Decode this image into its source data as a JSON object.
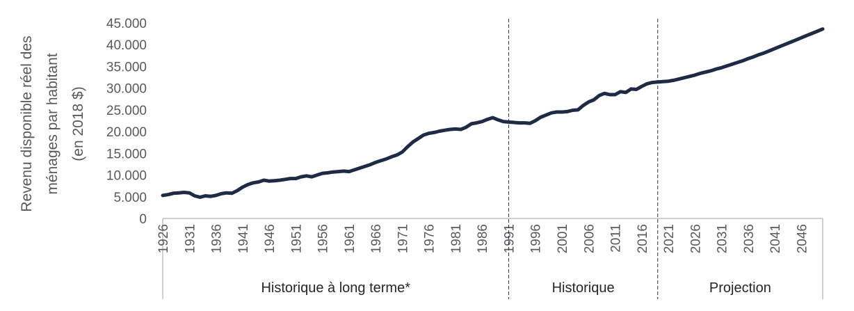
{
  "chart_data": {
    "type": "line",
    "ylabel": [
      "Revenu disponible réel des",
      "ménages par habitant",
      "(en 2018 $)"
    ],
    "ylim": [
      0,
      45000
    ],
    "y_ticks": [
      "0",
      "5.000",
      "10.000",
      "15.000",
      "20.000",
      "25.000",
      "30.000",
      "35.000",
      "40.000",
      "45.000"
    ],
    "y_tick_values": [
      0,
      5000,
      10000,
      15000,
      20000,
      25000,
      30000,
      35000,
      40000,
      45000
    ],
    "xlim": [
      1926,
      2050
    ],
    "x_ticks": [
      "1926",
      "1931",
      "1936",
      "1941",
      "1946",
      "1951",
      "1956",
      "1961",
      "1966",
      "1971",
      "1976",
      "1981",
      "1986",
      "1991",
      "1996",
      "2001",
      "2006",
      "2011",
      "2016",
      "2021",
      "2026",
      "2031",
      "2036",
      "2041",
      "2046"
    ],
    "x_tick_values": [
      1926,
      1931,
      1936,
      1941,
      1946,
      1951,
      1956,
      1961,
      1966,
      1971,
      1976,
      1981,
      1986,
      1991,
      1996,
      2001,
      2006,
      2011,
      2016,
      2021,
      2026,
      2031,
      2036,
      2041,
      2046
    ],
    "segments": [
      {
        "label": "Historique à long terme*",
        "start": 1926,
        "end": 1991
      },
      {
        "label": "Historique",
        "start": 1991,
        "end": 2019
      },
      {
        "label": "Projection",
        "start": 2019,
        "end": 2050
      }
    ],
    "dividers": [
      1991,
      2019
    ],
    "grid": false,
    "line_color": "#1f2b44",
    "series": [
      {
        "x": [
          1926,
          1927,
          1928,
          1929,
          1930,
          1931,
          1932,
          1933,
          1934,
          1935,
          1936,
          1937,
          1938,
          1939,
          1940,
          1941,
          1942,
          1943,
          1944,
          1945,
          1946,
          1947,
          1948,
          1949,
          1950,
          1951,
          1952,
          1953,
          1954,
          1955,
          1956,
          1957,
          1958,
          1959,
          1960,
          1961,
          1962,
          1963,
          1964,
          1965,
          1966,
          1967,
          1968,
          1969,
          1970,
          1971,
          1972,
          1973,
          1974,
          1975,
          1976,
          1977,
          1978,
          1979,
          1980,
          1981,
          1982,
          1983,
          1984,
          1985,
          1986,
          1987,
          1988,
          1989,
          1990,
          1991,
          1992,
          1993,
          1994,
          1995,
          1996,
          1997,
          1998,
          1999,
          2000,
          2001,
          2002,
          2003,
          2004,
          2005,
          2006,
          2007,
          2008,
          2009,
          2010,
          2011,
          2012,
          2013,
          2014,
          2015,
          2016,
          2017,
          2018,
          2019,
          2020,
          2021,
          2022,
          2023,
          2024,
          2025,
          2026,
          2027,
          2028,
          2029,
          2030,
          2031,
          2032,
          2033,
          2034,
          2035,
          2036,
          2037,
          2038,
          2039,
          2040,
          2041,
          2042,
          2043,
          2044,
          2045,
          2046,
          2047,
          2048,
          2049,
          2050
        ],
        "values": [
          5300,
          5500,
          5800,
          5900,
          6000,
          5900,
          5200,
          4900,
          5200,
          5100,
          5300,
          5700,
          5900,
          5800,
          6400,
          7200,
          7800,
          8200,
          8400,
          8800,
          8600,
          8700,
          8800,
          9000,
          9200,
          9200,
          9600,
          9800,
          9600,
          10000,
          10400,
          10500,
          10700,
          10800,
          10900,
          10800,
          11200,
          11600,
          12000,
          12400,
          12900,
          13300,
          13700,
          14200,
          14600,
          15300,
          16500,
          17600,
          18400,
          19200,
          19600,
          19800,
          20100,
          20300,
          20500,
          20600,
          20500,
          21000,
          21800,
          22000,
          22300,
          22800,
          23200,
          22700,
          22300,
          22200,
          22100,
          22000,
          22000,
          21900,
          22500,
          23300,
          23800,
          24300,
          24500,
          24500,
          24600,
          24900,
          25000,
          26000,
          26800,
          27300,
          28300,
          28800,
          28500,
          28500,
          29200,
          29000,
          29800,
          29700,
          30400,
          31000,
          31300,
          31400,
          31500,
          31600,
          31800,
          32100,
          32400,
          32700,
          33000,
          33400,
          33700,
          34000,
          34400,
          34700,
          35100,
          35500,
          35900,
          36300,
          36800,
          37200,
          37700,
          38100,
          38600,
          39100,
          39600,
          40100,
          40600,
          41100,
          41600,
          42100,
          42600,
          43100,
          43600
        ]
      }
    ]
  }
}
